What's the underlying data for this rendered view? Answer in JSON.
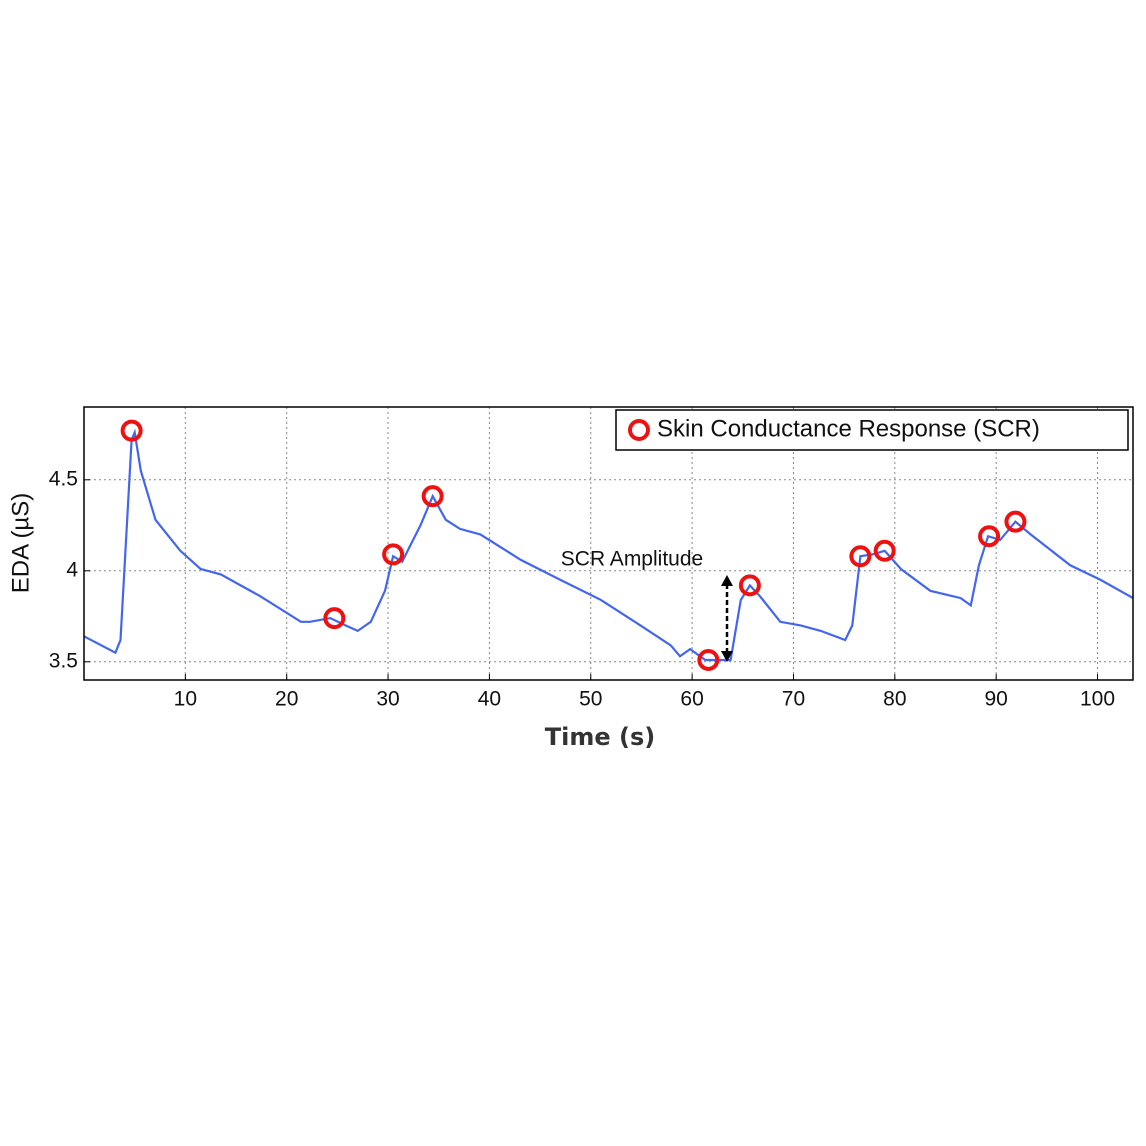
{
  "chart_data": {
    "type": "line",
    "xlabel": "Time (s)",
    "ylabel": "EDA (µS)",
    "xlim": [
      0,
      103.5
    ],
    "ylim": [
      3.4,
      4.9
    ],
    "xticks": [
      10,
      20,
      30,
      40,
      50,
      60,
      70,
      80,
      90,
      100
    ],
    "yticks": [
      3.5,
      4,
      4.5
    ],
    "grid": true,
    "legend": "upper right",
    "annotation": "SCR Amplitude",
    "series": [
      {
        "type": "line",
        "color": "#4466ee",
        "x": [
          0,
          3.1,
          3.6,
          4.7,
          5.0,
          5.6,
          7.05,
          9.5,
          11.5,
          13.5,
          17.4,
          21.4,
          22.3,
          24.3,
          25.8,
          27,
          28.3,
          29.7,
          30.5,
          31.4,
          32.2,
          33.2,
          34.4,
          35.7,
          37.1,
          39.1,
          43.1,
          47.0,
          51,
          54.9,
          57.9,
          58.8,
          59.8,
          61.3,
          62.8,
          63.8,
          64.8,
          65.7,
          66.7,
          68.7,
          70.7,
          72.7,
          75.1,
          75.8,
          76.6,
          77.8,
          79.0,
          80.6,
          83.5,
          86.5,
          87.5,
          88.3,
          89.2,
          90.4,
          91.9,
          93.4,
          97.3,
          100.3,
          103.5
        ],
        "values": [
          3.64,
          3.55,
          3.62,
          4.72,
          4.76,
          4.55,
          4.28,
          4.11,
          4.01,
          3.98,
          3.86,
          3.72,
          3.72,
          3.74,
          3.7,
          3.67,
          3.72,
          3.89,
          4.08,
          4.05,
          4.14,
          4.25,
          4.41,
          4.28,
          4.23,
          4.2,
          4.06,
          3.95,
          3.84,
          3.7,
          3.59,
          3.53,
          3.57,
          3.51,
          3.51,
          3.51,
          3.84,
          3.92,
          3.86,
          3.72,
          3.7,
          3.67,
          3.62,
          3.7,
          4.08,
          4.09,
          4.11,
          4.01,
          3.89,
          3.85,
          3.81,
          4.03,
          4.19,
          4.17,
          4.27,
          4.2,
          4.03,
          3.95,
          3.85
        ]
      },
      {
        "type": "scatter",
        "name": "Skin Conductance Response (SCR)",
        "color": "#ee1111",
        "x": [
          4.7,
          24.7,
          30.5,
          34.4,
          61.6,
          65.7,
          76.6,
          79.0,
          89.3,
          91.9
        ],
        "values": [
          4.77,
          3.74,
          4.09,
          4.41,
          3.51,
          3.92,
          4.08,
          4.11,
          4.19,
          4.27
        ]
      }
    ]
  }
}
